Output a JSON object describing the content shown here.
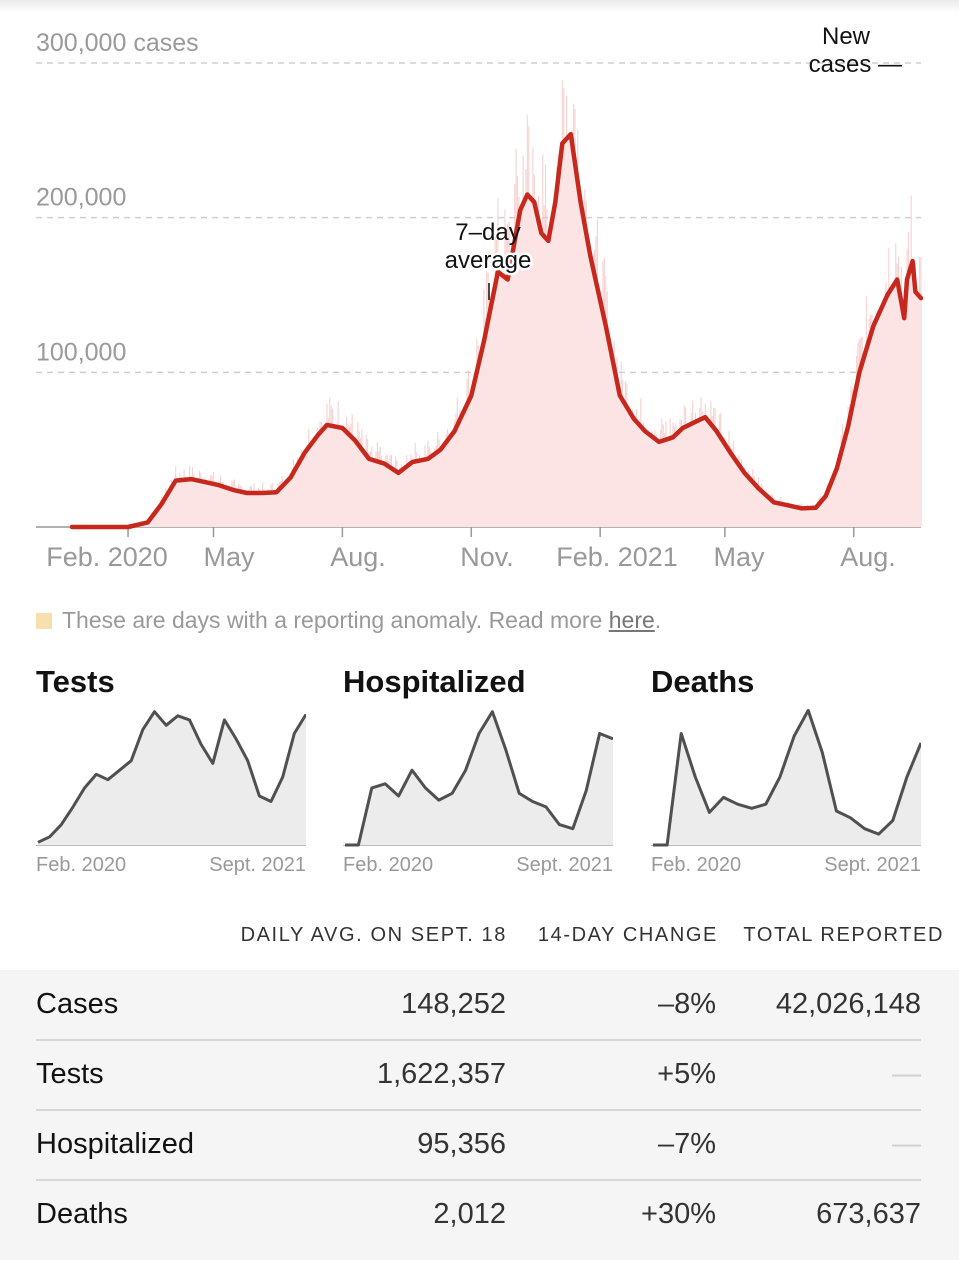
{
  "chart_data": {
    "type": "bar",
    "ylim": [
      0,
      300000
    ],
    "y_ticks": [
      "300,000 cases",
      "200,000",
      "100,000"
    ],
    "y_tick_values": [
      300000,
      200000,
      100000
    ],
    "x_tick_labels": [
      "Feb. 2020",
      "May",
      "Aug.",
      "Nov.",
      "Feb. 2021",
      "May",
      "Aug."
    ],
    "x_range": [
      "2020-01-21",
      "2021-09-18"
    ],
    "annotations": {
      "average_label": [
        "7–day",
        "average"
      ],
      "new_cases_label": [
        "New",
        "cases —"
      ]
    },
    "series": [
      {
        "name": "7–day average",
        "kind": "line",
        "points": [
          [
            "2020-01-21",
            0
          ],
          [
            "2020-03-01",
            0
          ],
          [
            "2020-03-15",
            3000
          ],
          [
            "2020-03-25",
            15000
          ],
          [
            "2020-04-04",
            30000
          ],
          [
            "2020-04-15",
            31000
          ],
          [
            "2020-04-25",
            29000
          ],
          [
            "2020-05-05",
            27000
          ],
          [
            "2020-05-15",
            24000
          ],
          [
            "2020-05-25",
            22000
          ],
          [
            "2020-06-05",
            22000
          ],
          [
            "2020-06-15",
            22500
          ],
          [
            "2020-06-25",
            32000
          ],
          [
            "2020-07-05",
            48000
          ],
          [
            "2020-07-15",
            60000
          ],
          [
            "2020-07-21",
            66000
          ],
          [
            "2020-08-01",
            64000
          ],
          [
            "2020-08-10",
            56000
          ],
          [
            "2020-08-20",
            44000
          ],
          [
            "2020-08-31",
            41000
          ],
          [
            "2020-09-10",
            35000
          ],
          [
            "2020-09-20",
            42000
          ],
          [
            "2020-10-01",
            44000
          ],
          [
            "2020-10-10",
            50000
          ],
          [
            "2020-10-20",
            62000
          ],
          [
            "2020-11-01",
            85000
          ],
          [
            "2020-11-10",
            120000
          ],
          [
            "2020-11-20",
            165000
          ],
          [
            "2020-11-27",
            160000
          ],
          [
            "2020-12-01",
            180000
          ],
          [
            "2020-12-06",
            205000
          ],
          [
            "2020-12-11",
            215000
          ],
          [
            "2020-12-16",
            210000
          ],
          [
            "2020-12-21",
            190000
          ],
          [
            "2020-12-26",
            185000
          ],
          [
            "2020-12-31",
            210000
          ],
          [
            "2021-01-05",
            248000
          ],
          [
            "2021-01-11",
            254000
          ],
          [
            "2021-01-18",
            210000
          ],
          [
            "2021-01-25",
            175000
          ],
          [
            "2021-02-05",
            130000
          ],
          [
            "2021-02-15",
            85000
          ],
          [
            "2021-02-25",
            70000
          ],
          [
            "2021-03-05",
            62000
          ],
          [
            "2021-03-15",
            55000
          ],
          [
            "2021-03-25",
            58000
          ],
          [
            "2021-04-01",
            64000
          ],
          [
            "2021-04-10",
            68000
          ],
          [
            "2021-04-17",
            71000
          ],
          [
            "2021-04-25",
            62000
          ],
          [
            "2021-05-05",
            48000
          ],
          [
            "2021-05-15",
            35000
          ],
          [
            "2021-05-25",
            25000
          ],
          [
            "2021-06-05",
            16000
          ],
          [
            "2021-06-15",
            14000
          ],
          [
            "2021-06-25",
            12000
          ],
          [
            "2021-07-05",
            12500
          ],
          [
            "2021-07-12",
            20000
          ],
          [
            "2021-07-20",
            38000
          ],
          [
            "2021-07-28",
            65000
          ],
          [
            "2021-08-05",
            100000
          ],
          [
            "2021-08-15",
            130000
          ],
          [
            "2021-08-25",
            150000
          ],
          [
            "2021-09-01",
            160000
          ],
          [
            "2021-09-03",
            150000
          ],
          [
            "2021-09-06",
            135000
          ],
          [
            "2021-09-08",
            160000
          ],
          [
            "2021-09-12",
            172000
          ],
          [
            "2021-09-14",
            152000
          ],
          [
            "2021-09-18",
            148000
          ]
        ]
      }
    ]
  },
  "legend": {
    "text": "These are days with a reporting anomaly. Read more ",
    "link": "here",
    "end": "."
  },
  "mini_charts": [
    {
      "title": "Tests",
      "x_start": "Feb. 2020",
      "x_end": "Sept. 2021",
      "values": [
        0.02,
        0.06,
        0.15,
        0.28,
        0.42,
        0.52,
        0.48,
        0.55,
        0.62,
        0.85,
        0.98,
        0.88,
        0.95,
        0.92,
        0.74,
        0.6,
        0.92,
        0.78,
        0.62,
        0.36,
        0.32,
        0.5,
        0.82,
        0.96
      ]
    },
    {
      "title": "Hospitalized",
      "x_start": "Feb. 2020",
      "x_end": "Sept. 2021",
      "values": [
        0,
        0,
        0.42,
        0.45,
        0.36,
        0.55,
        0.42,
        0.33,
        0.38,
        0.55,
        0.82,
        0.98,
        0.7,
        0.38,
        0.32,
        0.28,
        0.15,
        0.12,
        0.4,
        0.82,
        0.78
      ]
    },
    {
      "title": "Deaths",
      "x_start": "Feb. 2020",
      "x_end": "Sept. 2021",
      "values": [
        0,
        0,
        0.82,
        0.5,
        0.24,
        0.35,
        0.3,
        0.27,
        0.3,
        0.5,
        0.8,
        0.99,
        0.68,
        0.25,
        0.2,
        0.12,
        0.08,
        0.18,
        0.5,
        0.75
      ]
    }
  ],
  "table": {
    "headers": [
      "DAILY AVG. ON SEPT. 18",
      "14-DAY CHANGE",
      "TOTAL REPORTED"
    ],
    "rows": [
      {
        "name": "Cases",
        "daily_avg": "148,252",
        "change": "–8%",
        "total": "42,026,148"
      },
      {
        "name": "Tests",
        "daily_avg": "1,622,357",
        "change": "+5%",
        "total": "—"
      },
      {
        "name": "Hospitalized",
        "daily_avg": "95,356",
        "change": "–7%",
        "total": "—"
      },
      {
        "name": "Deaths",
        "daily_avg": "2,012",
        "change": "+30%",
        "total": "673,637"
      }
    ]
  },
  "colors": {
    "line": "#c7281e",
    "bars": "#f3c3c2",
    "area": "#fbe4e3",
    "mini_line": "#505050",
    "mini_fill": "#ececec",
    "anomaly": "#f8dfae"
  }
}
